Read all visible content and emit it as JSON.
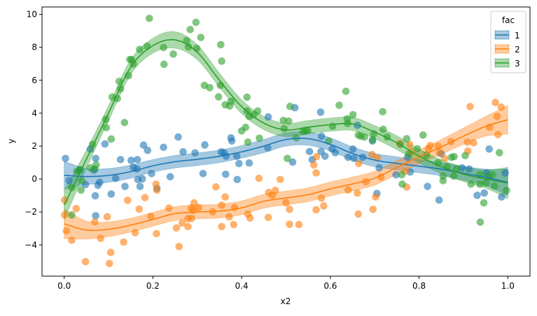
{
  "chart_data": {
    "type": "scatter",
    "title": "",
    "xlabel": "x2",
    "ylabel": "y",
    "xlim": [
      -0.05,
      1.05
    ],
    "ylim": [
      -5.9,
      10.45
    ],
    "xticks": [
      0.0,
      0.2,
      0.4,
      0.6,
      0.8,
      1.0
    ],
    "xtick_labels": [
      "0.0",
      "0.2",
      "0.4",
      "0.6",
      "0.8",
      "1.0"
    ],
    "yticks": [
      -4,
      -2,
      0,
      2,
      4,
      6,
      8,
      10
    ],
    "ytick_labels": [
      "−4",
      "−2",
      "0",
      "2",
      "4",
      "6",
      "8",
      "10"
    ],
    "grid": false,
    "legend": {
      "title": "fac",
      "placement": "top-right"
    },
    "fit_x": [
      0,
      0.05,
      0.1,
      0.15,
      0.2,
      0.25,
      0.3,
      0.35,
      0.4,
      0.45,
      0.5,
      0.55,
      0.6,
      0.65,
      0.7,
      0.75,
      0.8,
      0.85,
      0.9,
      0.95,
      1.0
    ],
    "series": [
      {
        "name": "1",
        "color": "#1f77b4",
        "fit": [
          0.23,
          0.15,
          0.22,
          0.45,
          0.8,
          1.05,
          1.2,
          1.38,
          1.65,
          2.0,
          2.4,
          2.45,
          2.1,
          1.55,
          1.15,
          0.95,
          0.78,
          0.6,
          0.35,
          0.1,
          -0.2
        ],
        "ci_halfwidth": [
          0.85,
          0.5,
          0.42,
          0.4,
          0.38,
          0.38,
          0.38,
          0.38,
          0.38,
          0.4,
          0.4,
          0.4,
          0.4,
          0.4,
          0.4,
          0.4,
          0.4,
          0.4,
          0.42,
          0.5,
          0.8
        ],
        "points": [
          [
            0.003,
            1.25
          ],
          [
            0.059,
            1.82
          ],
          [
            0.092,
            2.13
          ],
          [
            0.071,
            1.25
          ],
          [
            0.127,
            1.18
          ],
          [
            0.151,
            1.13
          ],
          [
            0.165,
            1.18
          ],
          [
            0.156,
            0.71
          ],
          [
            0.164,
            0.61
          ],
          [
            0.035,
            0.54
          ],
          [
            0.067,
            0.54
          ],
          [
            0.116,
            0.04
          ],
          [
            0.08,
            -0.2
          ],
          [
            0.076,
            -0.38
          ],
          [
            0.048,
            -0.34
          ],
          [
            0.011,
            -0.1
          ],
          [
            0.137,
            -0.45
          ],
          [
            0.171,
            -0.45
          ],
          [
            0.166,
            -0.03
          ],
          [
            0.176,
            0.01
          ],
          [
            0.197,
            0.33
          ],
          [
            0.239,
            0.14
          ],
          [
            0.179,
            2.06
          ],
          [
            0.188,
            1.74
          ],
          [
            0.224,
            1.93
          ],
          [
            0.257,
            2.55
          ],
          [
            0.268,
            1.65
          ],
          [
            0.295,
            1.59
          ],
          [
            0.317,
            2.07
          ],
          [
            0.313,
            0.33
          ],
          [
            0.354,
            1.65
          ],
          [
            0.07,
            -1.02
          ],
          [
            0.106,
            -0.91
          ],
          [
            0.071,
            -2.23
          ],
          [
            0.209,
            -0.57
          ],
          [
            0.46,
            3.77
          ],
          [
            0.376,
            2.5
          ],
          [
            0.378,
            2.31
          ],
          [
            0.52,
            4.33
          ],
          [
            0.578,
            4.06
          ],
          [
            0.58,
            2.6
          ],
          [
            0.604,
            1.82
          ],
          [
            0.611,
            1.6
          ],
          [
            0.579,
            1.67
          ],
          [
            0.588,
            1.39
          ],
          [
            0.559,
            1.18
          ],
          [
            0.553,
            1.67
          ],
          [
            0.651,
            1.82
          ],
          [
            0.64,
            1.32
          ],
          [
            0.653,
            1.25
          ],
          [
            0.673,
            1.32
          ],
          [
            0.695,
            2.31
          ],
          [
            0.71,
            0.68
          ],
          [
            0.705,
            -0.88
          ],
          [
            0.661,
            3.26
          ],
          [
            0.515,
            1.03
          ],
          [
            0.36,
            1.6
          ],
          [
            0.365,
            1.39
          ],
          [
            0.389,
            1.39
          ],
          [
            0.394,
            0.94
          ],
          [
            0.417,
            0.97
          ],
          [
            0.459,
            1.89
          ],
          [
            0.364,
            0.29
          ],
          [
            0.39,
            -0.03
          ],
          [
            0.85,
            1.53
          ],
          [
            0.819,
            -0.45
          ],
          [
            0.845,
            -1.28
          ],
          [
            0.78,
            0.43
          ],
          [
            0.748,
            0.26
          ],
          [
            0.897,
            0.68
          ],
          [
            0.913,
            0.61
          ],
          [
            0.952,
            0.37
          ],
          [
            0.958,
            1.82
          ],
          [
            0.931,
            -0.99
          ],
          [
            0.947,
            -0.85
          ],
          [
            0.986,
            -1.09
          ],
          [
            0.774,
            1.32
          ],
          [
            0.994,
            0.37
          ]
        ]
      },
      {
        "name": "2",
        "color": "#ff7f0e",
        "fit": [
          -2.72,
          -3.1,
          -3.05,
          -2.8,
          -2.45,
          -2.1,
          -2.0,
          -1.95,
          -1.75,
          -1.35,
          -1.15,
          -0.95,
          -0.6,
          -0.3,
          0.05,
          0.7,
          1.35,
          1.95,
          2.6,
          3.2,
          3.6
        ],
        "ci_halfwidth": [
          0.9,
          0.55,
          0.45,
          0.42,
          0.42,
          0.42,
          0.42,
          0.42,
          0.42,
          0.42,
          0.42,
          0.42,
          0.42,
          0.42,
          0.42,
          0.42,
          0.42,
          0.45,
          0.5,
          0.6,
          0.87
        ],
        "points": [
          [
            0.001,
            -1.28
          ],
          [
            0.001,
            -2.18
          ],
          [
            0.027,
            -1.8
          ],
          [
            0.005,
            -3.15
          ],
          [
            0.017,
            -3.72
          ],
          [
            0.069,
            -2.61
          ],
          [
            0.097,
            -2.3
          ],
          [
            0.082,
            -3.6
          ],
          [
            0.143,
            -1.3
          ],
          [
            0.182,
            -1.13
          ],
          [
            0.169,
            -1.83
          ],
          [
            0.195,
            -2.27
          ],
          [
            0.207,
            -0.31
          ],
          [
            0.209,
            -0.67
          ],
          [
            0.16,
            -3.26
          ],
          [
            0.208,
            -3.32
          ],
          [
            0.134,
            -3.83
          ],
          [
            0.105,
            -4.46
          ],
          [
            0.048,
            -5.02
          ],
          [
            0.102,
            -5.13
          ],
          [
            0.236,
            -1.76
          ],
          [
            0.253,
            -2.97
          ],
          [
            0.266,
            -2.68
          ],
          [
            0.259,
            -4.1
          ],
          [
            0.279,
            -2.89
          ],
          [
            0.279,
            -2.41
          ],
          [
            0.287,
            -2.4
          ],
          [
            0.286,
            -1.76
          ],
          [
            0.293,
            -1.45
          ],
          [
            0.291,
            -1.9
          ],
          [
            0.303,
            -1.73
          ],
          [
            0.335,
            -1.99
          ],
          [
            0.342,
            -0.48
          ],
          [
            0.355,
            -1.59
          ],
          [
            0.355,
            -2.89
          ],
          [
            0.439,
            0.04
          ],
          [
            0.487,
            -0.03
          ],
          [
            0.461,
            -0.81
          ],
          [
            0.476,
            -0.69
          ],
          [
            0.469,
            -0.99
          ],
          [
            0.5,
            -1.45
          ],
          [
            0.508,
            -1.84
          ],
          [
            0.569,
            1.36
          ],
          [
            0.563,
            0.85
          ],
          [
            0.568,
            0.37
          ],
          [
            0.58,
            -1.16
          ],
          [
            0.585,
            -1.63
          ],
          [
            0.568,
            -1.87
          ],
          [
            0.64,
            -0.67
          ],
          [
            0.661,
            -0.85
          ],
          [
            0.663,
            -2.13
          ],
          [
            0.696,
            -1.84
          ],
          [
            0.702,
            -1.09
          ],
          [
            0.68,
            -0.17
          ],
          [
            0.664,
            0.94
          ],
          [
            0.694,
            1.49
          ],
          [
            0.706,
            1.28
          ],
          [
            0.363,
            -1.09
          ],
          [
            0.384,
            -1.73
          ],
          [
            0.372,
            -2.3
          ],
          [
            0.382,
            -2.77
          ],
          [
            0.414,
            -2.13
          ],
          [
            0.419,
            -2.37
          ],
          [
            0.46,
            -2.33
          ],
          [
            0.508,
            -2.75
          ],
          [
            0.529,
            -2.77
          ],
          [
            0.915,
            4.4
          ],
          [
            0.972,
            4.65
          ],
          [
            0.985,
            4.37
          ],
          [
            0.976,
            3.8
          ],
          [
            0.959,
            3.14
          ],
          [
            0.978,
            2.7
          ],
          [
            0.909,
            2.24
          ],
          [
            0.923,
            2.2
          ],
          [
            0.872,
            2.27
          ],
          [
            0.843,
            1.99
          ],
          [
            0.825,
            2.03
          ],
          [
            0.821,
            1.84
          ],
          [
            0.846,
            1.6
          ],
          [
            0.858,
            1.25
          ],
          [
            0.91,
            1.7
          ],
          [
            0.779,
            2.1
          ],
          [
            0.756,
            2.17
          ],
          [
            0.782,
            1.67
          ],
          [
            0.772,
            -0.48
          ],
          [
            0.769,
            0.47
          ],
          [
            0.714,
            0.11
          ]
        ]
      },
      {
        "name": "3",
        "color": "#2ca02c",
        "fit": [
          -1.58,
          1.2,
          4.0,
          6.8,
          8.1,
          8.45,
          7.7,
          6.0,
          4.4,
          3.4,
          2.98,
          3.15,
          3.3,
          3.35,
          2.85,
          2.2,
          1.4,
          0.75,
          0.3,
          0.0,
          -0.24
        ],
        "ci_halfwidth": [
          0.9,
          0.55,
          0.45,
          0.45,
          0.45,
          0.5,
          0.45,
          0.42,
          0.42,
          0.4,
          0.4,
          0.4,
          0.4,
          0.4,
          0.4,
          0.42,
          0.42,
          0.42,
          0.45,
          0.55,
          0.95
        ],
        "points": [
          [
            0.095,
            3.12
          ],
          [
            0.106,
            2.43
          ],
          [
            0.064,
            2.1
          ],
          [
            0.072,
            0.86
          ],
          [
            0.059,
            0.68
          ],
          [
            0.029,
            0.47
          ],
          [
            0.035,
            0.57
          ],
          [
            0.04,
            -0.1
          ],
          [
            0.017,
            -0.52
          ],
          [
            0.038,
            -0.67
          ],
          [
            0.017,
            -2.18
          ],
          [
            0.069,
            0.61
          ],
          [
            0.192,
            9.76
          ],
          [
            0.297,
            9.52
          ],
          [
            0.284,
            9.08
          ],
          [
            0.308,
            8.6
          ],
          [
            0.276,
            8.41
          ],
          [
            0.28,
            8.03
          ],
          [
            0.299,
            7.94
          ],
          [
            0.224,
            7.99
          ],
          [
            0.187,
            8.06
          ],
          [
            0.246,
            7.59
          ],
          [
            0.225,
            6.97
          ],
          [
            0.17,
            7.87
          ],
          [
            0.148,
            7.26
          ],
          [
            0.152,
            7.26
          ],
          [
            0.156,
            6.99
          ],
          [
            0.145,
            6.28
          ],
          [
            0.124,
            5.93
          ],
          [
            0.127,
            5.48
          ],
          [
            0.108,
            4.98
          ],
          [
            0.12,
            4.89
          ],
          [
            0.094,
            3.62
          ],
          [
            0.136,
            3.43
          ],
          [
            0.353,
            8.16
          ],
          [
            0.355,
            7.16
          ],
          [
            0.316,
            5.69
          ],
          [
            0.328,
            5.55
          ],
          [
            0.352,
            5.69
          ],
          [
            0.348,
            4.99
          ],
          [
            0.363,
            4.51
          ],
          [
            0.373,
            4.44
          ],
          [
            0.376,
            4.72
          ],
          [
            0.412,
            4.97
          ],
          [
            0.412,
            4.13
          ],
          [
            0.436,
            4.13
          ],
          [
            0.427,
            3.91
          ],
          [
            0.417,
            3.8
          ],
          [
            0.409,
            3.14
          ],
          [
            0.4,
            2.92
          ],
          [
            0.509,
            4.41
          ],
          [
            0.494,
            3.56
          ],
          [
            0.506,
            3.52
          ],
          [
            0.496,
            3.06
          ],
          [
            0.414,
            2.24
          ],
          [
            0.44,
            2.48
          ],
          [
            0.523,
            2.5
          ],
          [
            0.538,
            2.88
          ],
          [
            0.544,
            2.91
          ],
          [
            0.549,
            2.95
          ],
          [
            0.635,
            5.33
          ],
          [
            0.62,
            4.48
          ],
          [
            0.651,
            3.91
          ],
          [
            0.638,
            3.66
          ],
          [
            0.639,
            3.37
          ],
          [
            0.605,
            3.2
          ],
          [
            0.596,
            2.31
          ],
          [
            0.663,
            2.67
          ],
          [
            0.669,
            2.6
          ],
          [
            0.677,
            2.55
          ],
          [
            0.698,
            2.74
          ],
          [
            0.718,
            4.09
          ],
          [
            0.719,
            3.02
          ],
          [
            0.695,
            2.38
          ],
          [
            0.503,
            1.25
          ],
          [
            0.728,
            2.55
          ],
          [
            0.772,
            2.45
          ],
          [
            0.809,
            2.67
          ],
          [
            0.758,
            2.1
          ],
          [
            0.796,
            1.84
          ],
          [
            0.777,
            1.53
          ],
          [
            0.817,
            1.46
          ],
          [
            0.843,
            0.99
          ],
          [
            0.873,
            1.32
          ],
          [
            0.879,
            1.36
          ],
          [
            0.904,
            1.42
          ],
          [
            0.981,
            1.6
          ],
          [
            0.863,
            0.75
          ],
          [
            0.884,
            0.61
          ],
          [
            0.854,
            0.18
          ],
          [
            0.854,
            -0.1
          ],
          [
            0.878,
            0.18
          ],
          [
            0.761,
            0.26
          ],
          [
            0.762,
            -0.31
          ],
          [
            0.917,
            -0.31
          ],
          [
            0.937,
            -0.31
          ],
          [
            0.937,
            0.26
          ],
          [
            0.951,
            -0.24
          ],
          [
            0.956,
            0.18
          ],
          [
            0.965,
            0.26
          ],
          [
            0.97,
            -0.43
          ],
          [
            0.997,
            -0.69
          ],
          [
            0.946,
            -1.45
          ],
          [
            0.938,
            -2.62
          ]
        ]
      }
    ]
  }
}
